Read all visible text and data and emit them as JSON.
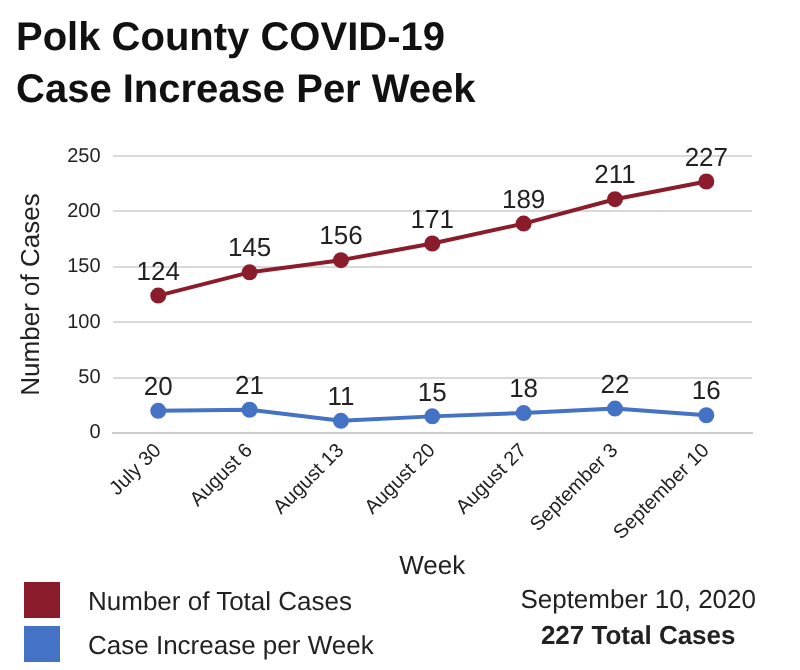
{
  "chart_data": {
    "type": "line",
    "title": "Polk County COVID-19 Case Increase Per Week",
    "xlabel": "Week",
    "ylabel": "Number of Cases",
    "categories": [
      "July 30",
      "August 6",
      "August 13",
      "August 20",
      "August 27",
      "September 3",
      "September 10"
    ],
    "series": [
      {
        "name": "Number of Total Cases",
        "color": "#8b1c2c",
        "values": [
          124,
          145,
          156,
          171,
          189,
          211,
          227
        ]
      },
      {
        "name": "Case Increase per Week",
        "color": "#4472c4",
        "values": [
          20,
          21,
          11,
          15,
          18,
          22,
          16
        ]
      }
    ],
    "ylim": [
      0,
      250
    ],
    "yticks": [
      0,
      50,
      100,
      150,
      200,
      250
    ],
    "grid": "y",
    "legend": "bottom left",
    "marker": "circle",
    "line_style": "solid",
    "data_labels": true,
    "annotations": [
      "September 10, 2020",
      "227 Total Cases"
    ]
  }
}
